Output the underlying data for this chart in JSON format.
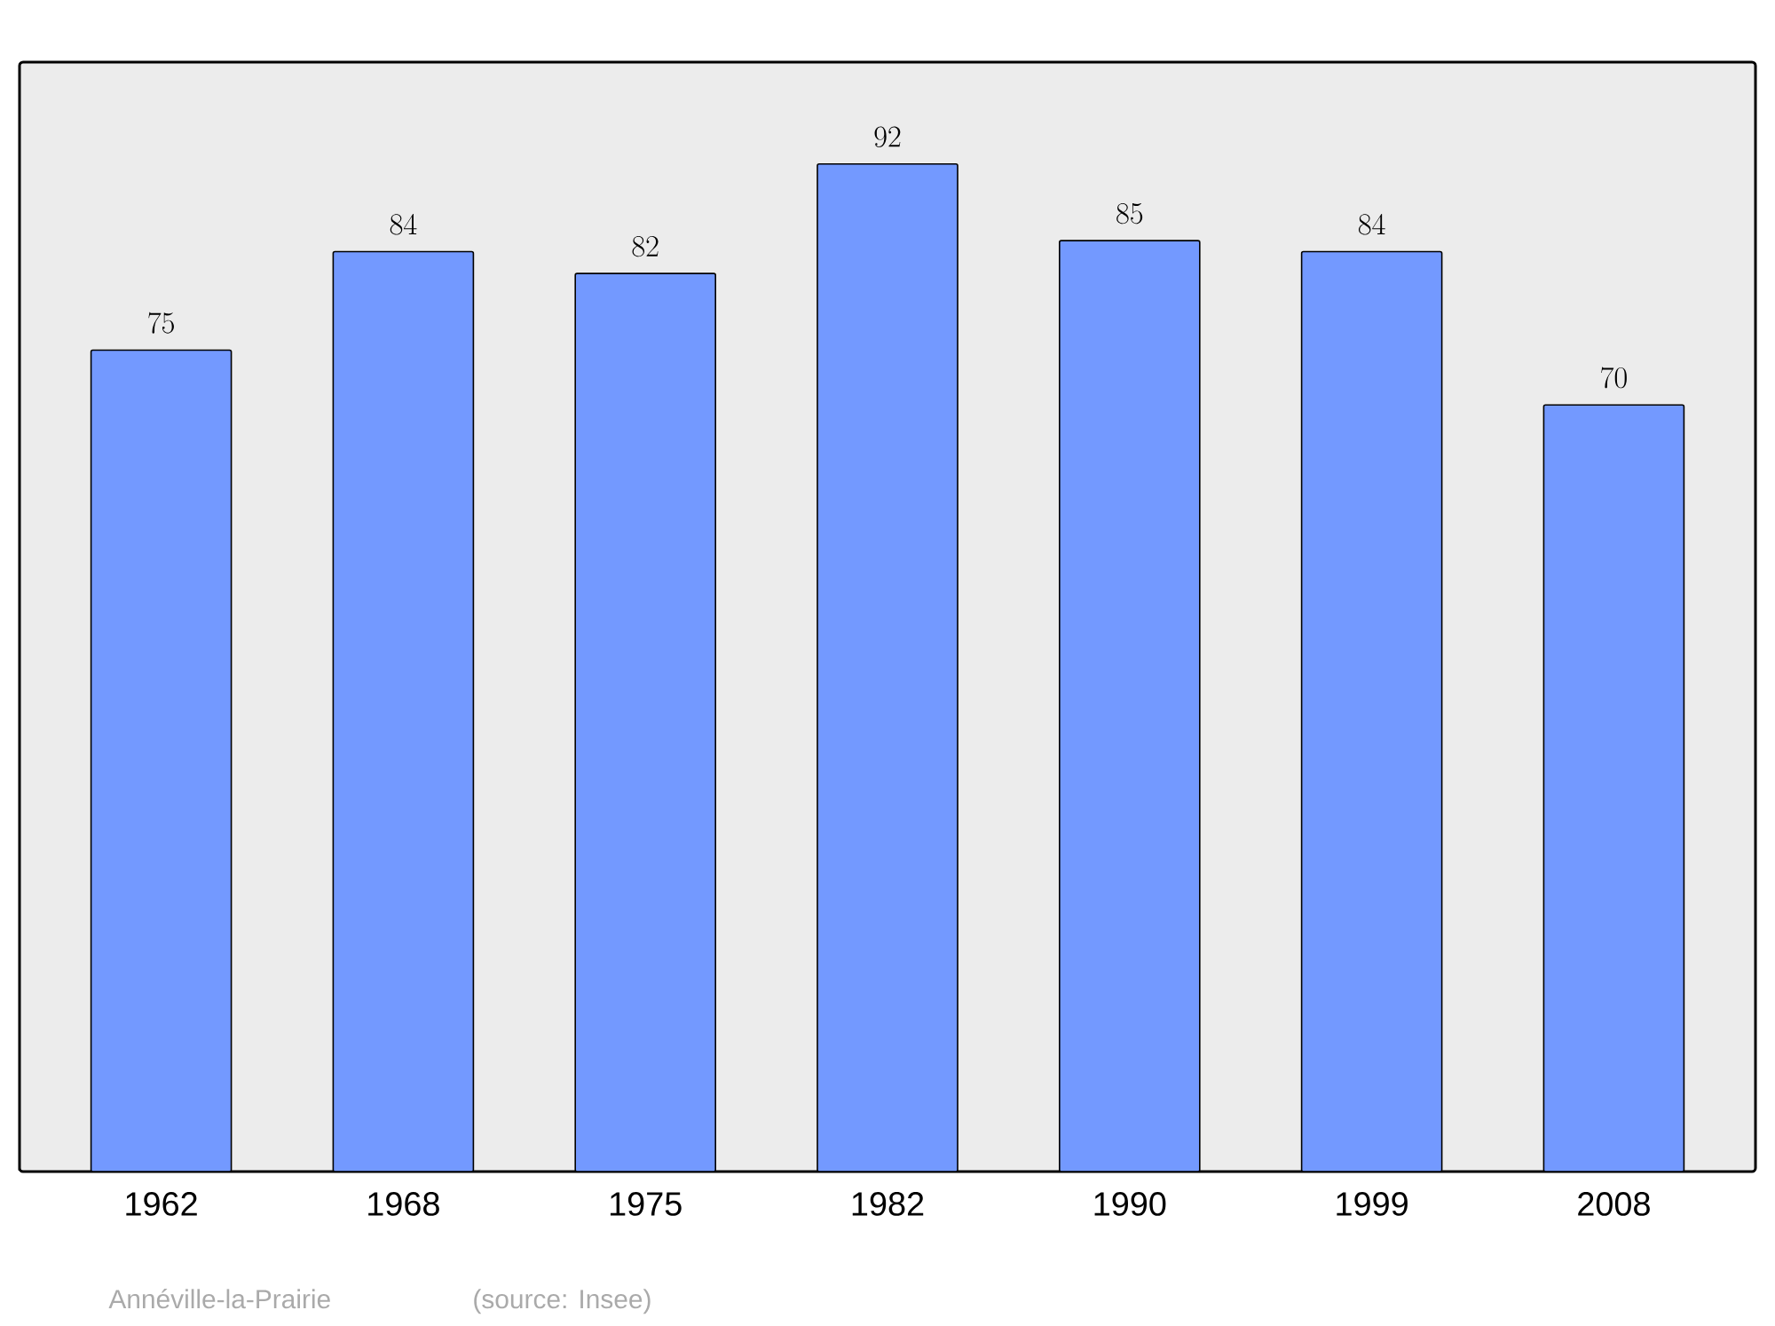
{
  "chart_data": {
    "type": "bar",
    "categories": [
      "1962",
      "1968",
      "1975",
      "1982",
      "1990",
      "1999",
      "2008"
    ],
    "values": [
      75,
      84,
      82,
      92,
      85,
      84,
      70
    ],
    "color": "#7399ff",
    "data_labels": true,
    "ylim": [
      0,
      101.3
    ],
    "annotations": [
      "Annéville-la-Prairie",
      "(source: Insee)"
    ]
  }
}
